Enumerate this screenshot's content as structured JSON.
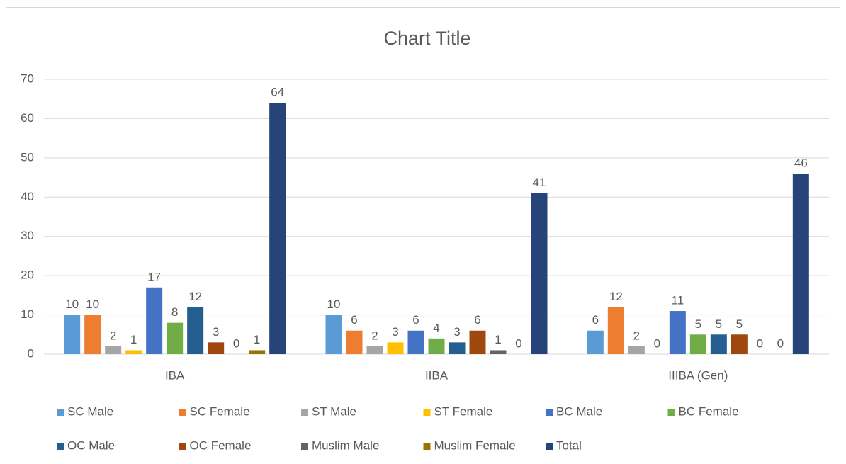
{
  "chart_data": {
    "type": "bar",
    "title": "Chart Title",
    "categories": [
      "IBA",
      "IIBA",
      "IIIBA (Gen)"
    ],
    "series": [
      {
        "name": "SC Male",
        "color": "#5b9bd5",
        "values": [
          10,
          10,
          6
        ]
      },
      {
        "name": "SC Female",
        "color": "#ed7d31",
        "values": [
          10,
          6,
          12
        ]
      },
      {
        "name": "ST Male",
        "color": "#a5a5a5",
        "values": [
          2,
          2,
          2
        ]
      },
      {
        "name": "ST Female",
        "color": "#ffc000",
        "values": [
          1,
          3,
          0
        ]
      },
      {
        "name": "BC Male",
        "color": "#4472c4",
        "values": [
          17,
          6,
          11
        ]
      },
      {
        "name": "BC Female",
        "color": "#70ad47",
        "values": [
          8,
          4,
          5
        ]
      },
      {
        "name": "OC Male",
        "color": "#255e91",
        "values": [
          12,
          3,
          5
        ]
      },
      {
        "name": "OC Female",
        "color": "#9e480e",
        "values": [
          3,
          6,
          5
        ]
      },
      {
        "name": "Muslim Male",
        "color": "#636363",
        "values": [
          0,
          1,
          0
        ]
      },
      {
        "name": "Muslim Female",
        "color": "#997300",
        "values": [
          1,
          0,
          0
        ]
      },
      {
        "name": "Total",
        "color": "#264478",
        "values": [
          64,
          41,
          46
        ]
      }
    ],
    "ylim": [
      0,
      70
    ],
    "yticks": [
      0,
      10,
      20,
      30,
      40,
      50,
      60,
      70
    ],
    "grid": true,
    "legend": "bottom"
  }
}
